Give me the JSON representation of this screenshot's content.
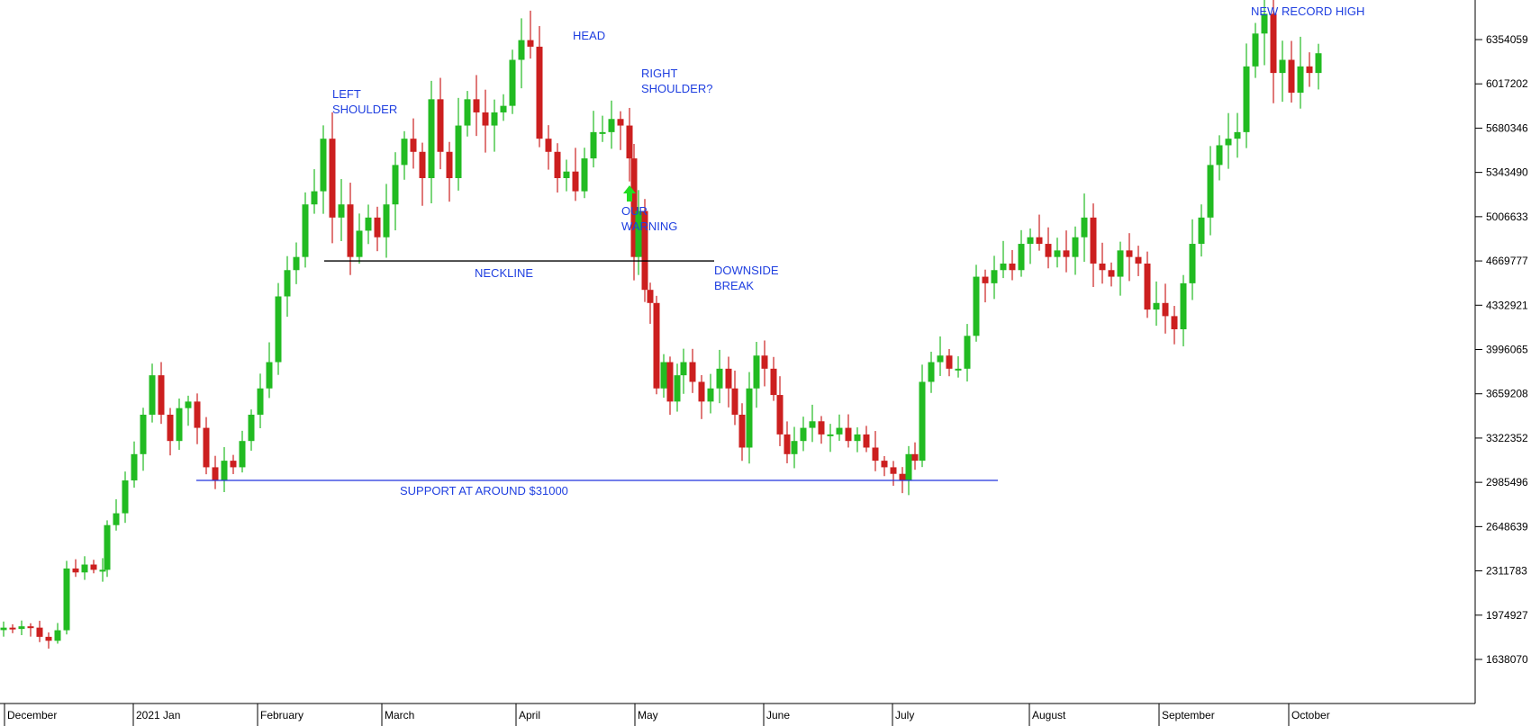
{
  "colors": {
    "up": "#22bb22",
    "down": "#cc1f1f",
    "wick_up": "#22bb22",
    "wick_down": "#cc1f1f",
    "annotation": "#1f3fe0",
    "neckline": "#000000",
    "support": "#2233dd",
    "axis": "#000000",
    "arrow": "#22dd22"
  },
  "chart_data": {
    "type": "candlestick",
    "title": "",
    "xlabel": "",
    "ylabel": "",
    "y_axis_position": "right",
    "grid": false,
    "ylim": [
      1400000,
      6700000
    ],
    "y_ticks": [
      1638070,
      1974927,
      2311783,
      2648639,
      2985496,
      3322352,
      3659208,
      3996065,
      4332921,
      4669777,
      5006633,
      5343490,
      5680346,
      6017202,
      6354059
    ],
    "months": [
      "December",
      "2021 Jan",
      "February",
      "March",
      "April",
      "May",
      "June",
      "July",
      "August",
      "September",
      "October"
    ],
    "approx_daily_close": [
      [
        0,
        1880000
      ],
      [
        10,
        1870000
      ],
      [
        20,
        1890000
      ],
      [
        30,
        1880000
      ],
      [
        40,
        1810000
      ],
      [
        50,
        1780000
      ],
      [
        60,
        1860000
      ],
      [
        70,
        2330000
      ],
      [
        80,
        2300000
      ],
      [
        90,
        2360000
      ],
      [
        100,
        2320000
      ],
      [
        110,
        2320000
      ],
      [
        115,
        2660000
      ],
      [
        125,
        2750000
      ],
      [
        135,
        3000000
      ],
      [
        145,
        3200000
      ],
      [
        155,
        3500000
      ],
      [
        165,
        3800000
      ],
      [
        175,
        3500000
      ],
      [
        185,
        3300000
      ],
      [
        195,
        3550000
      ],
      [
        205,
        3600000
      ],
      [
        215,
        3400000
      ],
      [
        225,
        3100000
      ],
      [
        235,
        3000000
      ],
      [
        245,
        3150000
      ],
      [
        255,
        3100000
      ],
      [
        265,
        3300000
      ],
      [
        275,
        3500000
      ],
      [
        285,
        3700000
      ],
      [
        295,
        3900000
      ],
      [
        305,
        4400000
      ],
      [
        315,
        4600000
      ],
      [
        325,
        4700000
      ],
      [
        335,
        5100000
      ],
      [
        345,
        5200000
      ],
      [
        355,
        5600000
      ],
      [
        365,
        5000000
      ],
      [
        375,
        5100000
      ],
      [
        385,
        4700000
      ],
      [
        395,
        4900000
      ],
      [
        405,
        5000000
      ],
      [
        415,
        4850000
      ],
      [
        425,
        5100000
      ],
      [
        435,
        5400000
      ],
      [
        445,
        5600000
      ],
      [
        455,
        5500000
      ],
      [
        465,
        5300000
      ],
      [
        475,
        5900000
      ],
      [
        485,
        5500000
      ],
      [
        495,
        5300000
      ],
      [
        505,
        5700000
      ],
      [
        515,
        5900000
      ],
      [
        525,
        5800000
      ],
      [
        535,
        5700000
      ],
      [
        545,
        5800000
      ],
      [
        555,
        5850000
      ],
      [
        565,
        6200000
      ],
      [
        575,
        6350000
      ],
      [
        585,
        6300000
      ],
      [
        595,
        5600000
      ],
      [
        605,
        5500000
      ],
      [
        615,
        5300000
      ],
      [
        625,
        5350000
      ],
      [
        635,
        5200000
      ],
      [
        645,
        5450000
      ],
      [
        655,
        5650000
      ],
      [
        665,
        5650000
      ],
      [
        675,
        5750000
      ],
      [
        685,
        5700000
      ],
      [
        695,
        5450000
      ],
      [
        700,
        4700000
      ],
      [
        705,
        5050000
      ],
      [
        712,
        4450000
      ],
      [
        718,
        4350000
      ],
      [
        725,
        3700000
      ],
      [
        733,
        3900000
      ],
      [
        740,
        3600000
      ],
      [
        748,
        3800000
      ],
      [
        755,
        3900000
      ],
      [
        765,
        3750000
      ],
      [
        775,
        3600000
      ],
      [
        785,
        3700000
      ],
      [
        795,
        3850000
      ],
      [
        805,
        3700000
      ],
      [
        812,
        3500000
      ],
      [
        820,
        3250000
      ],
      [
        828,
        3700000
      ],
      [
        836,
        3950000
      ],
      [
        845,
        3850000
      ],
      [
        855,
        3650000
      ],
      [
        862,
        3350000
      ],
      [
        870,
        3200000
      ],
      [
        878,
        3300000
      ],
      [
        888,
        3400000
      ],
      [
        898,
        3450000
      ],
      [
        908,
        3350000
      ],
      [
        918,
        3350000
      ],
      [
        928,
        3400000
      ],
      [
        938,
        3300000
      ],
      [
        948,
        3350000
      ],
      [
        958,
        3250000
      ],
      [
        968,
        3150000
      ],
      [
        978,
        3100000
      ],
      [
        988,
        3050000
      ],
      [
        998,
        3000000
      ],
      [
        1005,
        3200000
      ],
      [
        1012,
        3150000
      ],
      [
        1020,
        3750000
      ],
      [
        1030,
        3900000
      ],
      [
        1040,
        3950000
      ],
      [
        1050,
        3850000
      ],
      [
        1060,
        3850000
      ],
      [
        1070,
        4100000
      ],
      [
        1080,
        4550000
      ],
      [
        1090,
        4500000
      ],
      [
        1100,
        4600000
      ],
      [
        1110,
        4650000
      ],
      [
        1120,
        4600000
      ],
      [
        1130,
        4800000
      ],
      [
        1140,
        4850000
      ],
      [
        1150,
        4800000
      ],
      [
        1160,
        4700000
      ],
      [
        1170,
        4750000
      ],
      [
        1180,
        4700000
      ],
      [
        1190,
        4850000
      ],
      [
        1200,
        5000000
      ],
      [
        1210,
        4650000
      ],
      [
        1220,
        4600000
      ],
      [
        1230,
        4550000
      ],
      [
        1240,
        4750000
      ],
      [
        1250,
        4700000
      ],
      [
        1260,
        4650000
      ],
      [
        1270,
        4300000
      ],
      [
        1280,
        4350000
      ],
      [
        1290,
        4250000
      ],
      [
        1300,
        4150000
      ],
      [
        1310,
        4500000
      ],
      [
        1320,
        4800000
      ],
      [
        1330,
        5000000
      ],
      [
        1340,
        5400000
      ],
      [
        1350,
        5550000
      ],
      [
        1360,
        5600000
      ],
      [
        1370,
        5650000
      ],
      [
        1380,
        6150000
      ],
      [
        1390,
        6400000
      ],
      [
        1400,
        6550000
      ],
      [
        1410,
        6100000
      ],
      [
        1420,
        6200000
      ],
      [
        1430,
        5950000
      ],
      [
        1440,
        6150000
      ],
      [
        1450,
        6100000
      ],
      [
        1460,
        6250000
      ]
    ],
    "annotations": {
      "left_shoulder_1": "LEFT",
      "left_shoulder_2": "SHOULDER",
      "head": "HEAD",
      "right_shoulder_1": "RIGHT",
      "right_shoulder_2": "SHOULDER?",
      "our_warning_1": "OUR",
      "our_warning_2": "WARNING",
      "neckline": "NECKLINE",
      "downside_1": "DOWNSIDE",
      "downside_2": "BREAK",
      "support": "SUPPORT AT AROUND $31000",
      "new_high": "NEW RECORD HIGH"
    },
    "neckline_level": 4669777,
    "support_level": 3000000
  }
}
